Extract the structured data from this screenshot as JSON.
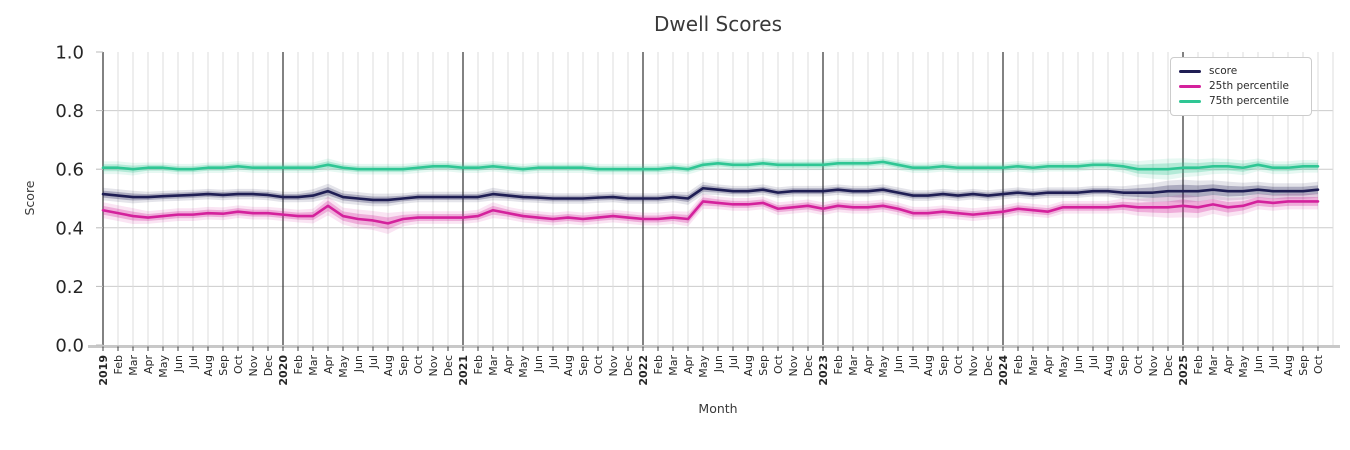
{
  "chart_data": {
    "type": "line",
    "title": "Dwell Scores",
    "xlabel": "Month",
    "ylabel": "Score",
    "ylim": [
      0.0,
      1.0
    ],
    "yticks": [
      0.0,
      0.2,
      0.4,
      0.6,
      0.8,
      1.0
    ],
    "grid": true,
    "legend_position": "upper right",
    "x_labels": [
      "2019",
      "Feb",
      "Mar",
      "Apr",
      "May",
      "Jun",
      "Jul",
      "Aug",
      "Sep",
      "Oct",
      "Nov",
      "Dec",
      "2020",
      "Feb",
      "Mar",
      "Apr",
      "May",
      "Jun",
      "Jul",
      "Aug",
      "Sep",
      "Oct",
      "Nov",
      "Dec",
      "2021",
      "Feb",
      "Mar",
      "Apr",
      "May",
      "Jun",
      "Jul",
      "Aug",
      "Sep",
      "Oct",
      "Nov",
      "Dec",
      "2022",
      "Feb",
      "Mar",
      "Apr",
      "May",
      "Jun",
      "Jul",
      "Aug",
      "Sep",
      "Oct",
      "Nov",
      "Dec",
      "2023",
      "Feb",
      "Mar",
      "Apr",
      "May",
      "Jun",
      "Jul",
      "Aug",
      "Sep",
      "Oct",
      "Nov",
      "Dec",
      "2024",
      "Feb",
      "Mar",
      "Apr",
      "May",
      "Jun",
      "Jul",
      "Aug",
      "Sep",
      "Oct",
      "Nov",
      "Dec",
      "2025",
      "Feb",
      "Mar",
      "Apr",
      "May",
      "Jun",
      "Jul",
      "Aug",
      "Sep",
      "Oct"
    ],
    "series": [
      {
        "name": "score",
        "color": "#1f1e54",
        "values": [
          0.515,
          0.51,
          0.505,
          0.505,
          0.508,
          0.51,
          0.512,
          0.515,
          0.512,
          0.515,
          0.515,
          0.512,
          0.505,
          0.505,
          0.51,
          0.525,
          0.505,
          0.5,
          0.495,
          0.495,
          0.5,
          0.505,
          0.505,
          0.505,
          0.505,
          0.505,
          0.515,
          0.51,
          0.505,
          0.503,
          0.5,
          0.5,
          0.5,
          0.503,
          0.505,
          0.5,
          0.5,
          0.5,
          0.505,
          0.5,
          0.535,
          0.53,
          0.525,
          0.525,
          0.53,
          0.52,
          0.525,
          0.525,
          0.525,
          0.53,
          0.525,
          0.525,
          0.53,
          0.52,
          0.51,
          0.51,
          0.515,
          0.51,
          0.515,
          0.51,
          0.515,
          0.52,
          0.515,
          0.52,
          0.52,
          0.52,
          0.525,
          0.525,
          0.52,
          0.52,
          0.52,
          0.525,
          0.525,
          0.525,
          0.53,
          0.525,
          0.525,
          0.53,
          0.525,
          0.525,
          0.525,
          0.53
        ],
        "band_halfwidth": [
          0.012,
          0.012,
          0.012,
          0.01,
          0.01,
          0.01,
          0.01,
          0.01,
          0.01,
          0.01,
          0.01,
          0.01,
          0.01,
          0.01,
          0.012,
          0.014,
          0.012,
          0.012,
          0.012,
          0.012,
          0.01,
          0.01,
          0.01,
          0.01,
          0.01,
          0.01,
          0.012,
          0.01,
          0.01,
          0.01,
          0.01,
          0.01,
          0.01,
          0.01,
          0.01,
          0.01,
          0.01,
          0.01,
          0.01,
          0.012,
          0.012,
          0.01,
          0.01,
          0.01,
          0.01,
          0.01,
          0.01,
          0.01,
          0.01,
          0.01,
          0.01,
          0.01,
          0.01,
          0.01,
          0.01,
          0.01,
          0.01,
          0.01,
          0.01,
          0.01,
          0.01,
          0.01,
          0.01,
          0.01,
          0.01,
          0.01,
          0.01,
          0.01,
          0.012,
          0.015,
          0.018,
          0.02,
          0.022,
          0.02,
          0.018,
          0.018,
          0.016,
          0.015,
          0.015,
          0.015,
          0.015,
          0.015
        ]
      },
      {
        "name": "25th percentile",
        "color": "#d4219c",
        "values": [
          0.46,
          0.45,
          0.44,
          0.435,
          0.44,
          0.445,
          0.445,
          0.45,
          0.448,
          0.455,
          0.45,
          0.45,
          0.445,
          0.44,
          0.44,
          0.475,
          0.44,
          0.43,
          0.425,
          0.415,
          0.43,
          0.435,
          0.435,
          0.435,
          0.435,
          0.44,
          0.46,
          0.45,
          0.44,
          0.435,
          0.43,
          0.435,
          0.43,
          0.435,
          0.44,
          0.435,
          0.43,
          0.43,
          0.435,
          0.43,
          0.49,
          0.485,
          0.48,
          0.48,
          0.485,
          0.465,
          0.47,
          0.475,
          0.465,
          0.475,
          0.47,
          0.47,
          0.475,
          0.465,
          0.45,
          0.45,
          0.455,
          0.45,
          0.445,
          0.45,
          0.455,
          0.465,
          0.46,
          0.455,
          0.47,
          0.47,
          0.47,
          0.47,
          0.475,
          0.47,
          0.47,
          0.47,
          0.475,
          0.47,
          0.48,
          0.47,
          0.475,
          0.49,
          0.485,
          0.49,
          0.49,
          0.49
        ],
        "band_halfwidth": [
          0.015,
          0.015,
          0.015,
          0.012,
          0.012,
          0.012,
          0.012,
          0.012,
          0.012,
          0.012,
          0.012,
          0.012,
          0.012,
          0.012,
          0.014,
          0.018,
          0.016,
          0.018,
          0.018,
          0.02,
          0.014,
          0.012,
          0.012,
          0.012,
          0.012,
          0.012,
          0.015,
          0.012,
          0.012,
          0.012,
          0.012,
          0.012,
          0.012,
          0.012,
          0.012,
          0.012,
          0.012,
          0.012,
          0.012,
          0.014,
          0.014,
          0.012,
          0.012,
          0.012,
          0.012,
          0.012,
          0.012,
          0.012,
          0.012,
          0.012,
          0.012,
          0.012,
          0.012,
          0.012,
          0.012,
          0.012,
          0.012,
          0.012,
          0.012,
          0.012,
          0.012,
          0.012,
          0.012,
          0.012,
          0.012,
          0.012,
          0.012,
          0.012,
          0.014,
          0.016,
          0.018,
          0.02,
          0.022,
          0.02,
          0.018,
          0.018,
          0.016,
          0.015,
          0.015,
          0.015,
          0.015,
          0.015
        ]
      },
      {
        "name": "75th percentile",
        "color": "#2fc694",
        "values": [
          0.605,
          0.605,
          0.6,
          0.605,
          0.605,
          0.6,
          0.6,
          0.605,
          0.605,
          0.61,
          0.605,
          0.605,
          0.605,
          0.605,
          0.605,
          0.615,
          0.605,
          0.6,
          0.6,
          0.6,
          0.6,
          0.605,
          0.61,
          0.61,
          0.605,
          0.605,
          0.61,
          0.605,
          0.6,
          0.605,
          0.605,
          0.605,
          0.605,
          0.6,
          0.6,
          0.6,
          0.6,
          0.6,
          0.605,
          0.6,
          0.615,
          0.62,
          0.615,
          0.615,
          0.62,
          0.615,
          0.615,
          0.615,
          0.615,
          0.62,
          0.62,
          0.62,
          0.625,
          0.615,
          0.605,
          0.605,
          0.61,
          0.605,
          0.605,
          0.605,
          0.605,
          0.61,
          0.605,
          0.61,
          0.61,
          0.61,
          0.615,
          0.615,
          0.61,
          0.6,
          0.6,
          0.6,
          0.605,
          0.605,
          0.61,
          0.61,
          0.605,
          0.615,
          0.605,
          0.605,
          0.61,
          0.61
        ],
        "band_halfwidth": [
          0.012,
          0.012,
          0.012,
          0.01,
          0.01,
          0.01,
          0.01,
          0.01,
          0.01,
          0.01,
          0.01,
          0.01,
          0.01,
          0.01,
          0.01,
          0.012,
          0.01,
          0.01,
          0.01,
          0.01,
          0.01,
          0.01,
          0.01,
          0.01,
          0.01,
          0.01,
          0.01,
          0.01,
          0.01,
          0.01,
          0.01,
          0.01,
          0.01,
          0.01,
          0.01,
          0.01,
          0.01,
          0.01,
          0.01,
          0.01,
          0.01,
          0.01,
          0.01,
          0.01,
          0.01,
          0.01,
          0.01,
          0.01,
          0.01,
          0.01,
          0.01,
          0.01,
          0.01,
          0.01,
          0.01,
          0.01,
          0.01,
          0.01,
          0.01,
          0.01,
          0.01,
          0.01,
          0.01,
          0.01,
          0.01,
          0.01,
          0.01,
          0.01,
          0.012,
          0.015,
          0.018,
          0.02,
          0.018,
          0.016,
          0.015,
          0.014,
          0.014,
          0.012,
          0.012,
          0.012,
          0.012,
          0.012
        ]
      }
    ]
  }
}
